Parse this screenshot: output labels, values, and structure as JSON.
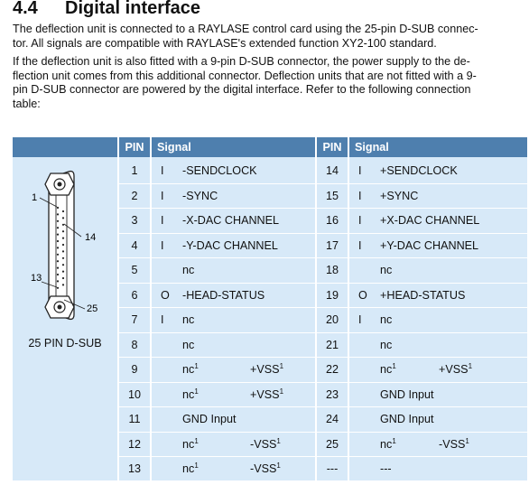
{
  "section": {
    "number": "4.4",
    "title": "Digital interface"
  },
  "paragraphs": {
    "p1": [
      "The deflection unit is connected to a RAYLASE control card using the 25-pin D-SUB connec-",
      "tor. All signals are compatible with RAYLASE's extended function XY2-100 standard."
    ],
    "p2": [
      "If the deflection unit is also fitted with a 9-pin D-SUB connector, the power supply to the de-",
      "flection unit comes from this additional connector. Deflection units that are not fitted with a 9-",
      "pin D-SUB connector are powered by the digital interface. Refer to the following connection",
      "table:"
    ]
  },
  "connector": {
    "caption": "25 PIN D-SUB",
    "pin_labels": {
      "p1": "1",
      "p13": "13",
      "p14": "14",
      "p25": "25"
    }
  },
  "table": {
    "headers": {
      "pin_left": "PIN",
      "signal_left": "Signal",
      "pin_right": "PIN",
      "signal_right": "Signal"
    },
    "rows": [
      {
        "lpin": "1",
        "ldir": "I",
        "lsig": "-SENDCLOCK",
        "lpwr": "",
        "rpin": "14",
        "rdir": "I",
        "rsig": "+SENDCLOCK",
        "rpwr": ""
      },
      {
        "lpin": "2",
        "ldir": "I",
        "lsig": "-SYNC",
        "lpwr": "",
        "rpin": "15",
        "rdir": "I",
        "rsig": "+SYNC",
        "rpwr": ""
      },
      {
        "lpin": "3",
        "ldir": "I",
        "lsig": "-X-DAC CHANNEL",
        "lpwr": "",
        "rpin": "16",
        "rdir": "I",
        "rsig": "+X-DAC CHANNEL",
        "rpwr": ""
      },
      {
        "lpin": "4",
        "ldir": "I",
        "lsig": "-Y-DAC CHANNEL",
        "lpwr": "",
        "rpin": "17",
        "rdir": "I",
        "rsig": "+Y-DAC CHANNEL",
        "rpwr": ""
      },
      {
        "lpin": "5",
        "ldir": "",
        "lsig": "nc",
        "lpwr": "",
        "rpin": "18",
        "rdir": "",
        "rsig": "nc",
        "rpwr": ""
      },
      {
        "lpin": "6",
        "ldir": "O",
        "lsig": "-HEAD-STATUS",
        "lpwr": "",
        "rpin": "19",
        "rdir": "O",
        "rsig": "+HEAD-STATUS",
        "rpwr": ""
      },
      {
        "lpin": "7",
        "ldir": "I",
        "lsig": "nc",
        "lpwr": "",
        "rpin": "20",
        "rdir": "I",
        "rsig": "nc",
        "rpwr": ""
      },
      {
        "lpin": "8",
        "ldir": "",
        "lsig": "nc",
        "lpwr": "",
        "rpin": "21",
        "rdir": "",
        "rsig": "nc",
        "rpwr": ""
      },
      {
        "lpin": "9",
        "ldir": "",
        "lsig": "nc",
        "lsig_sup": "1",
        "lpwr": "+VSS",
        "lpwr_sup": "1",
        "rpin": "22",
        "rdir": "",
        "rsig": "nc",
        "rsig_sup": "1",
        "rpwr": "+VSS",
        "rpwr_sup": "1"
      },
      {
        "lpin": "10",
        "ldir": "",
        "lsig": "nc",
        "lsig_sup": "1",
        "lpwr": "+VSS",
        "lpwr_sup": "1",
        "rpin": "23",
        "rdir": "",
        "rsig": "GND Input",
        "rpwr": ""
      },
      {
        "lpin": "11",
        "ldir": "",
        "lsig": "GND Input",
        "lpwr": "",
        "rpin": "24",
        "rdir": "",
        "rsig": "GND Input",
        "rpwr": ""
      },
      {
        "lpin": "12",
        "ldir": "",
        "lsig": "nc",
        "lsig_sup": "1",
        "lpwr": "-VSS",
        "lpwr_sup": "1",
        "rpin": "25",
        "rdir": "",
        "rsig": "nc",
        "rsig_sup": "1",
        "rpwr": "-VSS",
        "rpwr_sup": "1"
      },
      {
        "lpin": "13",
        "ldir": "",
        "lsig": "nc",
        "lsig_sup": "1",
        "lpwr": "-VSS",
        "lpwr_sup": "1",
        "rpin": "---",
        "rdir": "",
        "rsig": "---",
        "rpwr": ""
      }
    ]
  }
}
